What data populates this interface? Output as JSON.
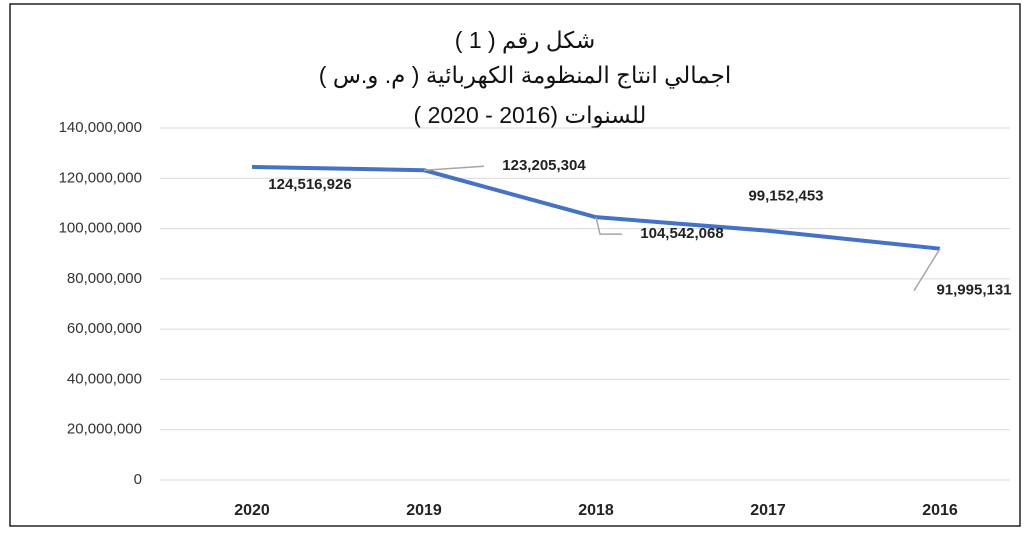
{
  "chart_data": {
    "type": "line",
    "title_lines": [
      "شكل رقم ( 1 )",
      "اجمالي انتاج المنظومة الكهربائية ( م. و.س )",
      "للسنوات (2016 - 2020 )"
    ],
    "categories": [
      "2020",
      "2019",
      "2018",
      "2017",
      "2016"
    ],
    "values": [
      124516926,
      123205304,
      104542068,
      99152453,
      91995131
    ],
    "value_labels": [
      "124,516,926",
      "123,205,304",
      "104,542,068",
      "99,152,453",
      "91,995,131"
    ],
    "color": "#4472c4",
    "ylim": [
      0,
      140000000
    ],
    "yticks": [
      0,
      {
        "value": 20000000,
        "label": "20,000,000"
      },
      {
        "value": 40000000,
        "label": "40,000,000"
      },
      {
        "value": 60000000,
        "label": "60,000,000"
      },
      {
        "value": 80000000,
        "label": "80,000,000"
      },
      {
        "value": 100000000,
        "label": "100,000,000"
      },
      {
        "value": 120000000,
        "label": "120,000,000"
      },
      {
        "value": 140000000,
        "label": "140,000,000"
      }
    ],
    "grid": true
  }
}
